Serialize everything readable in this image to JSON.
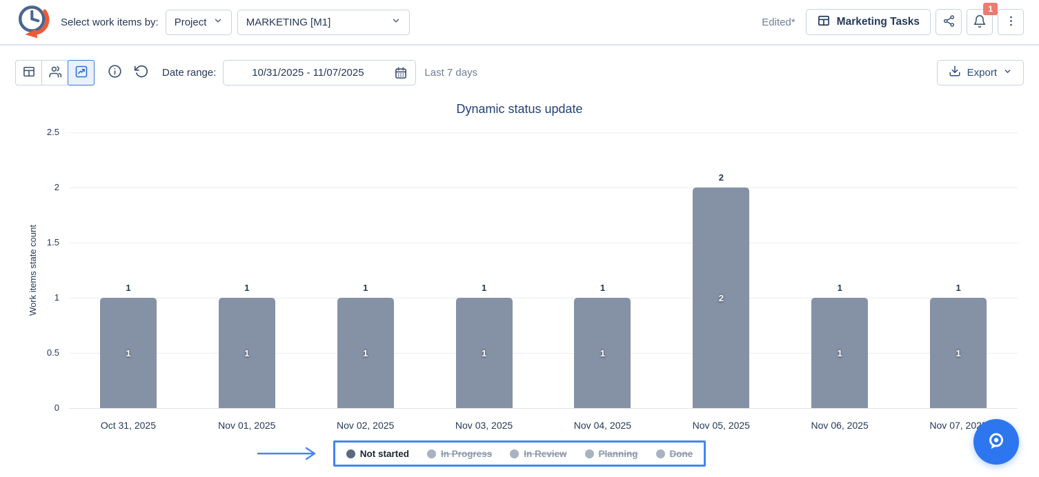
{
  "header": {
    "select_label": "Select work items by:",
    "work_items_by": {
      "value": "Project"
    },
    "project": {
      "value": "MARKETING [M1]"
    },
    "edited_label": "Edited*",
    "report_name_button": "Marketing Tasks",
    "notification_badge": "1"
  },
  "toolbar": {
    "active_view": "chart",
    "date_range_label": "Date range:",
    "date_range_value": "10/31/2025 - 11/07/2025",
    "date_range_hint": "Last 7 days",
    "export_label": "Export"
  },
  "chart_data": {
    "type": "bar",
    "title": "Dynamic status update",
    "xlabel": "",
    "ylabel": "Work items state count",
    "ylim": [
      0,
      2.5
    ],
    "yticks": [
      0,
      0.5,
      1,
      1.5,
      2,
      2.5
    ],
    "grid": true,
    "legend_position": "bottom",
    "categories": [
      "Oct 31, 2025",
      "Nov 01, 2025",
      "Nov 02, 2025",
      "Nov 03, 2025",
      "Nov 04, 2025",
      "Nov 05, 2025",
      "Nov 06, 2025",
      "Nov 07, 2025"
    ],
    "series": [
      {
        "name": "Not started",
        "color": "#8591a5",
        "values": [
          1,
          1,
          1,
          1,
          1,
          2,
          1,
          1
        ]
      }
    ],
    "legend": [
      {
        "label": "Not started",
        "active": true
      },
      {
        "label": "In Progress",
        "active": false
      },
      {
        "label": "In Review",
        "active": false
      },
      {
        "label": "Planning",
        "active": false
      },
      {
        "label": "Done",
        "active": false
      }
    ]
  },
  "colors": {
    "accent_blue": "#2e6fd9",
    "bar": "#8591a5",
    "annotation_blue": "#4285f4",
    "badge_red": "#ee7b6f",
    "fab_blue": "#2d76f0",
    "text_navy": "#253858",
    "text_muted": "#6e7e96"
  },
  "icons": {
    "logo": "clock-with-orange-arrow",
    "view_switcher": [
      "table-view-icon",
      "people-view-icon",
      "chart-view-icon"
    ],
    "other": [
      "info-icon",
      "reset-icon",
      "calendar-icon",
      "share-icon",
      "bell-icon",
      "kebab-menu-icon",
      "download-icon",
      "chevron-down-icon",
      "search-bubble-icon"
    ]
  }
}
